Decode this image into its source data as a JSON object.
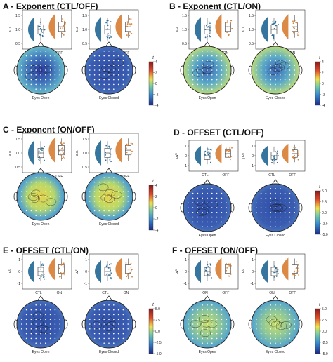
{
  "panels": [
    {
      "letter": "A",
      "title": "A - Exponent (CTL/OFF)",
      "ylabel": "a.u.",
      "yticks": [
        "1.5",
        "1.0",
        "0.5"
      ],
      "groups": [
        "CTL",
        "OFF"
      ],
      "cb_ticks": [
        "4",
        "2",
        "0",
        "-2",
        "-4"
      ],
      "cb_label": "t",
      "topo": [
        "Eyes Open",
        "Eyes Closed"
      ]
    },
    {
      "letter": "B",
      "title": "B - Exponent (CTL/ON)",
      "ylabel": "a.u.",
      "yticks": [
        "1.5",
        "1.0",
        "0.5"
      ],
      "groups": [
        "CTL",
        "ON"
      ],
      "cb_ticks": [
        "4",
        "2",
        "0",
        "-2",
        "-4"
      ],
      "cb_label": "t",
      "topo": [
        "Eyes Open",
        "Eyes Closed"
      ]
    },
    {
      "letter": "C",
      "title": "C - Exponent (ON/OFF)",
      "ylabel": "a.u.",
      "yticks": [
        "1.5",
        "1.0",
        "0.5"
      ],
      "groups": [
        "ON",
        "OFF"
      ],
      "cb_ticks": [
        "4",
        "2",
        "0",
        "-2",
        "-4"
      ],
      "cb_label": "t",
      "topo": [
        "Eyes Open",
        "Eyes Closed"
      ]
    },
    {
      "letter": "D",
      "title": "D - OFFSET (CTL/OFF)",
      "ylabel": "μV²",
      "yticks": [
        "1",
        "0",
        "-1"
      ],
      "groups": [
        "CTL",
        "OFF"
      ],
      "cb_ticks": [
        "5.0",
        "2.5",
        "0.0",
        "-2.5",
        "-5.0"
      ],
      "cb_label": "t",
      "topo": [
        "Eyes Open",
        "Eyes Closed"
      ]
    },
    {
      "letter": "E",
      "title": "E - OFFSET (CTL/ON)",
      "ylabel": "μV²",
      "yticks": [
        "1",
        "0",
        "-1"
      ],
      "groups": [
        "CTL",
        "ON"
      ],
      "cb_ticks": [
        "5.0",
        "2.5",
        "0.0",
        "-2.5",
        "-5.0"
      ],
      "cb_label": "t",
      "topo": [
        "Eyes Open",
        "Eyes Closed"
      ]
    },
    {
      "letter": "F",
      "title": "F - OFFSET (ON/OFF)",
      "ylabel": "μV²",
      "yticks": [
        "1",
        "0",
        "-1"
      ],
      "groups": [
        "ON",
        "OFF"
      ],
      "cb_ticks": [
        "5.0",
        "2.5",
        "0.0",
        "-2.5",
        "-5.0"
      ],
      "cb_label": "t",
      "topo": [
        "Eyes Open",
        "Eyes Closed"
      ]
    }
  ],
  "colors": {
    "group1": "#2b6e99",
    "group2": "#d9833a",
    "cold": "#2b3a9c",
    "mid": "#5aa8c8",
    "warm": "#e8d44a",
    "hot": "#c83a2b"
  }
}
